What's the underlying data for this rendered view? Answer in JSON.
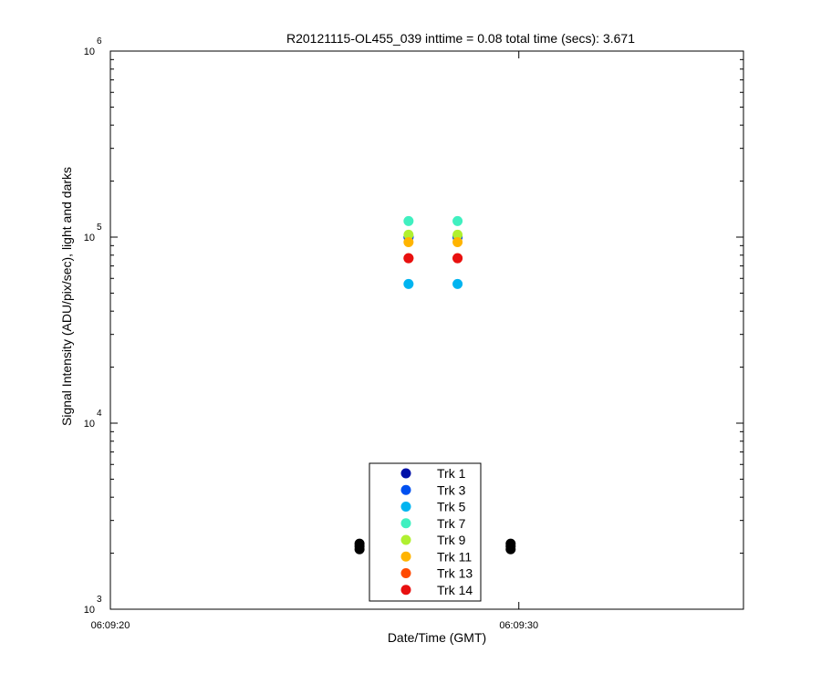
{
  "chart_data": {
    "type": "scatter",
    "title": "R20121115-OL455_039 inttime = 0.08 total time (secs): 3.671",
    "xlabel": "Date/Time (GMT)",
    "ylabel": "Signal Intensity (ADU/pix/sec), light and darks",
    "y_scale": "log",
    "ylim": [
      1000,
      1000000
    ],
    "y_ticks": [
      {
        "value": 1000,
        "base": "10",
        "exp": "3"
      },
      {
        "value": 10000,
        "base": "10",
        "exp": "4"
      },
      {
        "value": 100000,
        "base": "10",
        "exp": "5"
      },
      {
        "value": 1000000,
        "base": "10",
        "exp": "6"
      }
    ],
    "xlim": [
      "06:09:20",
      "06:09:35.5"
    ],
    "x_ticks": [
      "06:09:20",
      "06:09:30"
    ],
    "grid": false,
    "legend_position": "bottom-center",
    "series": [
      {
        "name": "Trk 1",
        "color": "#0010a8",
        "x": [
          "06:09:27.3",
          "06:09:28.5"
        ],
        "values": [
          100000,
          100000
        ]
      },
      {
        "name": "Trk 3",
        "color": "#0050f0",
        "x": [
          "06:09:27.3",
          "06:09:28.5"
        ],
        "values": [
          100000,
          100000
        ]
      },
      {
        "name": "Trk 5",
        "color": "#00b4f0",
        "x": [
          "06:09:27.3",
          "06:09:28.5"
        ],
        "values": [
          56000,
          56000
        ]
      },
      {
        "name": "Trk 7",
        "color": "#40f0c0",
        "x": [
          "06:09:27.3",
          "06:09:28.5"
        ],
        "values": [
          122000,
          122000
        ]
      },
      {
        "name": "Trk 9",
        "color": "#b0f030",
        "x": [
          "06:09:27.3",
          "06:09:28.5"
        ],
        "values": [
          103000,
          103000
        ]
      },
      {
        "name": "Trk 11",
        "color": "#ffb400",
        "x": [
          "06:09:27.3",
          "06:09:28.5"
        ],
        "values": [
          94000,
          94000
        ]
      },
      {
        "name": "Trk 13",
        "color": "#ff4a00",
        "x": [
          "06:09:27.3",
          "06:09:28.5"
        ],
        "values": [
          77000,
          77000
        ]
      },
      {
        "name": "Trk 14",
        "color": "#e81010",
        "x": [
          "06:09:27.3",
          "06:09:28.5"
        ],
        "values": [
          77000,
          77000
        ]
      }
    ],
    "darks": {
      "color": "#000000",
      "x": [
        "06:09:26.1",
        "06:09:26.1",
        "06:09:26.1",
        "06:09:29.8",
        "06:09:29.8",
        "06:09:29.8"
      ],
      "values": [
        2100,
        2180,
        2250,
        2100,
        2180,
        2250
      ]
    }
  }
}
